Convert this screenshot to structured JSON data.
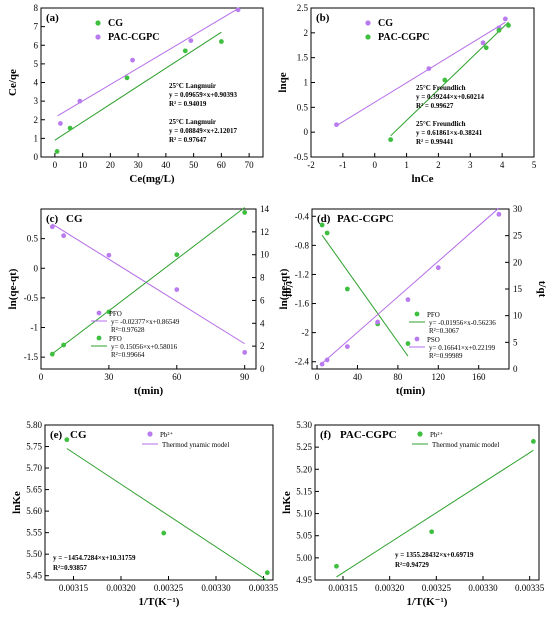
{
  "colors": {
    "green": "#2ca02c",
    "purple": "#b56ce8",
    "point_green": "#3fbf3f",
    "point_purple": "#b97cf0"
  },
  "chart_data": [
    {
      "id": "a",
      "type": "scatter",
      "panel_label": "(a)",
      "xlabel": "Ce(mg/L)",
      "ylabel": "Ce/qe",
      "xlim": [
        -5,
        75
      ],
      "ylim": [
        0,
        8
      ],
      "xticks": [
        0,
        10,
        20,
        30,
        40,
        50,
        60,
        70
      ],
      "yticks": [
        0,
        1,
        2,
        3,
        4,
        5,
        6,
        7,
        8
      ],
      "legend": [
        "CG",
        "PAC-CGPC"
      ],
      "series": [
        {
          "name": "CG",
          "color": "green",
          "x": [
            0.8,
            5.5,
            26,
            47,
            60
          ],
          "y": [
            0.3,
            1.55,
            4.25,
            5.7,
            6.2
          ],
          "fit": {
            "x1": 0,
            "x2": 60,
            "slope": 0.09659,
            "intercept": 0.90393
          }
        },
        {
          "name": "PAC-CGPC",
          "color": "purple",
          "x": [
            2,
            9,
            28,
            49,
            66
          ],
          "y": [
            1.8,
            3.0,
            5.2,
            6.25,
            7.9
          ],
          "fit": {
            "x1": 1,
            "x2": 66,
            "slope": 0.08849,
            "intercept": 2.12017
          }
        }
      ],
      "annotations": [
        {
          "lines": [
            "25°C  Langmuir",
            "y = 0.09659×x+0.90393",
            "R² = 0.94019"
          ]
        },
        {
          "lines": [
            "25°C  Langmuir",
            "y = 0.08849×x+2.12017",
            "R² = 0.97647"
          ]
        }
      ]
    },
    {
      "id": "b",
      "type": "scatter",
      "panel_label": "(b)",
      "xlabel": "lnCe",
      "ylabel": "lnqe",
      "xlim": [
        -2,
        5
      ],
      "ylim": [
        -0.5,
        2.5
      ],
      "xticks": [
        -2,
        -1,
        0,
        1,
        2,
        3,
        4,
        5
      ],
      "yticks": [
        -0.5,
        0.0,
        0.5,
        1.0,
        1.5,
        2.0,
        2.5
      ],
      "legend": [
        "CG",
        "PAC-CGPC"
      ],
      "series": [
        {
          "name": "CG",
          "color": "purple",
          "x": [
            -1.2,
            1.7,
            3.4,
            3.9,
            4.1
          ],
          "y": [
            0.15,
            1.28,
            1.8,
            2.1,
            2.28
          ],
          "fit": {
            "x1": -1.2,
            "x2": 4.1,
            "slope": 0.39244,
            "intercept": 0.60214
          }
        },
        {
          "name": "PAC-CGPC",
          "color": "green",
          "x": [
            0.5,
            2.2,
            3.5,
            3.9,
            4.2
          ],
          "y": [
            -0.15,
            1.05,
            1.7,
            2.05,
            2.15
          ],
          "fit": {
            "x1": 0.5,
            "x2": 4.2,
            "slope": 0.61861,
            "intercept": -0.38241
          }
        }
      ],
      "annotations": [
        {
          "lines": [
            "25°C  Freundlich",
            "y = 0.39244×x+0.60214",
            "R² = 0.99627"
          ]
        },
        {
          "lines": [
            "25°C  Freundlich",
            "y = 0.61861×x-0.38241",
            "R² = 0.99441"
          ]
        }
      ]
    },
    {
      "id": "c",
      "type": "scatter",
      "panel_label": "(c)",
      "title": "CG",
      "xlabel": "t(min)",
      "ylabel": "ln(qe-qt)",
      "ylabel_right": "t/qt",
      "xlim": [
        0,
        95
      ],
      "ylim": [
        -1.7,
        1.0
      ],
      "y2lim": [
        0,
        14
      ],
      "xticks": [
        0,
        30,
        60,
        90
      ],
      "yticks": [
        -1.5,
        -1.0,
        -0.5,
        0.0,
        0.5
      ],
      "y2ticks": [
        0,
        2,
        4,
        6,
        8,
        10,
        12,
        14
      ],
      "series": [
        {
          "name": "PFO",
          "color": "purple",
          "axis": "left",
          "x": [
            5,
            10,
            30,
            60,
            90
          ],
          "y": [
            0.7,
            0.55,
            0.22,
            -0.36,
            -1.42
          ],
          "fit": {
            "x1": 5,
            "x2": 90,
            "slope": -0.02377,
            "intercept": 0.86549
          }
        },
        {
          "name": "PFO",
          "color": "green",
          "axis": "right",
          "x": [
            5,
            10,
            30,
            60,
            90
          ],
          "y": [
            1.3,
            2.1,
            5.0,
            10.0,
            13.7
          ],
          "fit": {
            "x1": 5,
            "x2": 90,
            "slope": 0.15056,
            "intercept": 0.58016
          }
        }
      ],
      "legend_lines": [
        [
          "PFO",
          "y= -0.02377×x+0.86549",
          "R²=0.97628"
        ],
        [
          "PFO",
          "y= 0.15056×x+0.58016",
          "R²=0.99664"
        ]
      ]
    },
    {
      "id": "d",
      "type": "scatter",
      "panel_label": "(d)",
      "title": "PAC-CGPC",
      "xlabel": "t(min)",
      "ylabel": "ln(qe-qt)",
      "ylabel_right": "t/qt",
      "xlim": [
        -5,
        190
      ],
      "ylim": [
        -2.5,
        -0.3
      ],
      "y2lim": [
        0,
        30
      ],
      "xticks": [
        0,
        40,
        80,
        120,
        160
      ],
      "yticks": [
        -2.4,
        -2.0,
        -1.6,
        -1.2,
        -0.8,
        -0.4
      ],
      "y2ticks": [
        0,
        5,
        10,
        15,
        20,
        25,
        30
      ],
      "series": [
        {
          "name": "PFO",
          "color": "green",
          "axis": "left",
          "x": [
            5,
            10,
            30,
            60,
            90
          ],
          "y": [
            -0.52,
            -0.63,
            -1.4,
            -1.88,
            -2.15
          ],
          "fit": {
            "x1": 5,
            "x2": 90,
            "slope": -0.01956,
            "intercept": -0.56236
          }
        },
        {
          "name": "PSO",
          "color": "purple",
          "axis": "right",
          "x": [
            5,
            10,
            30,
            60,
            90,
            120,
            180
          ],
          "y": [
            0.9,
            1.7,
            4.2,
            8.8,
            13.0,
            19.0,
            29.0
          ],
          "fit": {
            "x1": 5,
            "x2": 180,
            "slope": 0.16641,
            "intercept": 0.22199
          }
        }
      ],
      "legend_lines": [
        [
          "PFO",
          "y= -0.01956×x-0.56236",
          "R²=0.3067"
        ],
        [
          "PSO",
          "y= 0.16641×x+0.22199",
          "R²=0.99989"
        ]
      ]
    },
    {
      "id": "e",
      "type": "scatter",
      "panel_label": "(e)",
      "title": "CG",
      "xlabel": "1/T(K⁻¹)",
      "ylabel": "lnKe",
      "xlim": [
        0.00312,
        0.00336
      ],
      "ylim": [
        5.44,
        5.8
      ],
      "xticks": [
        0.00315,
        0.0032,
        0.00325,
        0.0033,
        0.00335
      ],
      "yticks": [
        5.45,
        5.5,
        5.55,
        5.6,
        5.65,
        5.7,
        5.75,
        5.8
      ],
      "legend": [
        "Pb²⁺",
        "Thermod ynamic model"
      ],
      "series": [
        {
          "name": "Pb²⁺",
          "color": "green",
          "x": [
            0.003143,
            0.003245,
            0.003354
          ],
          "y": [
            5.766,
            5.549,
            5.457
          ],
          "fit": {
            "x1": 0.003143,
            "x2": 0.003354,
            "slope": -1454.7284,
            "intercept": 10.31759
          }
        }
      ],
      "annotation_lines": [
        "y = −1454.7284×x+10.31759",
        "R²=0.93857"
      ]
    },
    {
      "id": "f",
      "type": "scatter",
      "panel_label": "(f)",
      "title": "PAC-CGPC",
      "xlabel": "1/T(K⁻¹)",
      "ylabel": "lnKe",
      "xlim": [
        0.00312,
        0.00336
      ],
      "ylim": [
        4.95,
        5.3
      ],
      "xticks": [
        0.00315,
        0.0032,
        0.00325,
        0.0033,
        0.00335
      ],
      "yticks": [
        4.95,
        5.0,
        5.05,
        5.1,
        5.15,
        5.2,
        5.25,
        5.3
      ],
      "legend": [
        "Pb²⁺",
        "Thermod ynamic model"
      ],
      "series": [
        {
          "name": "Pb²⁺",
          "color": "green",
          "x": [
            0.003143,
            0.003245,
            0.003354
          ],
          "y": [
            4.981,
            5.059,
            5.263
          ],
          "fit": {
            "x1": 0.003143,
            "x2": 0.003354,
            "slope": 1355.28432,
            "intercept": 0.69719
          }
        }
      ],
      "annotation_lines": [
        "y = 1355.28432×x+0.69719",
        "R²=0.94729"
      ]
    }
  ]
}
